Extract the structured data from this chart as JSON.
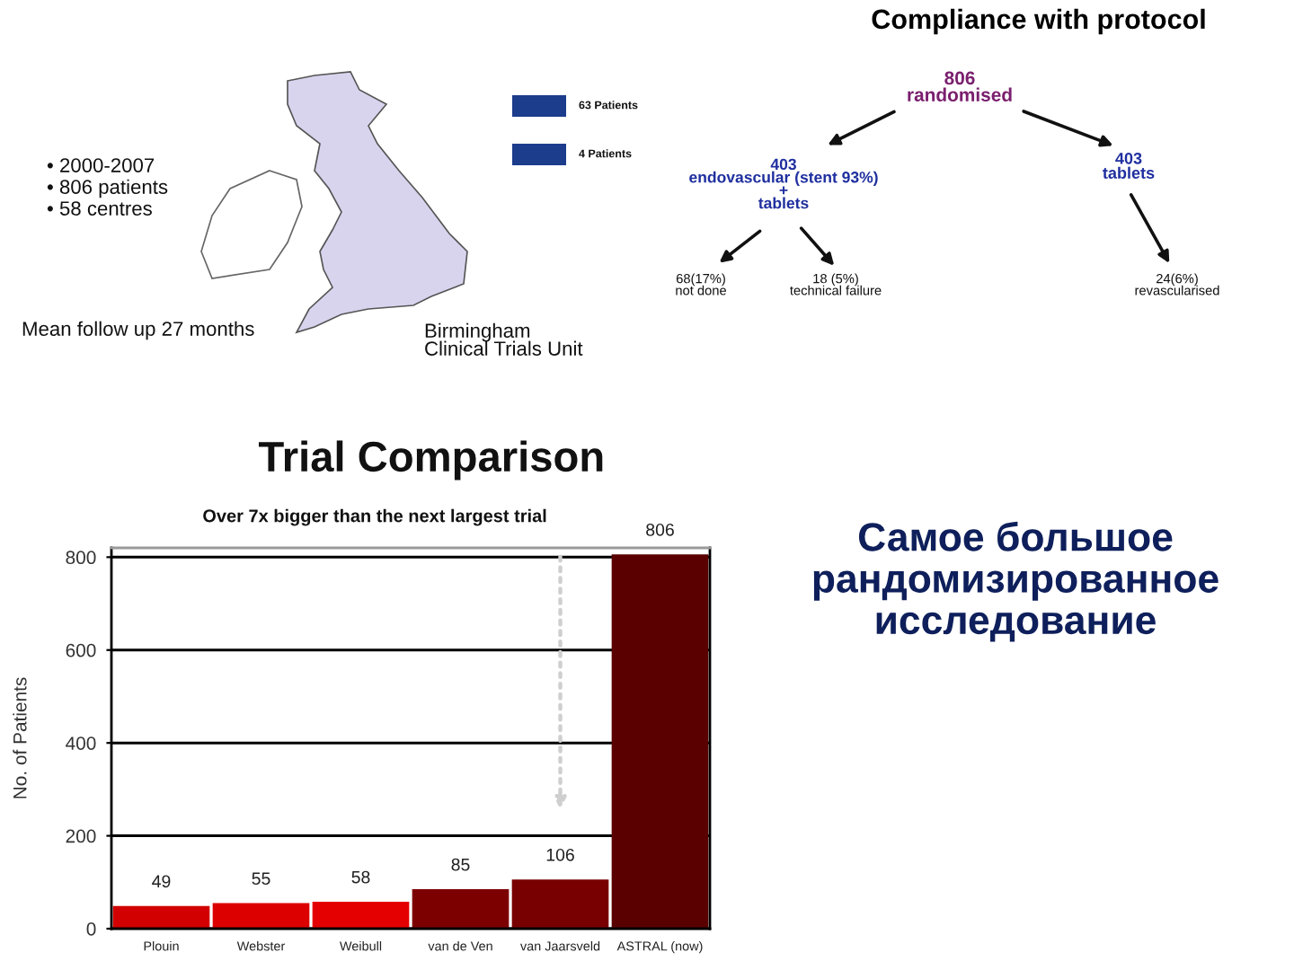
{
  "chart_data": [
    {
      "type": "other",
      "annotations": [
        "• 2000-2007",
        "• 806 patients",
        "• 58 centres",
        "Mean follow up 27 months",
        "Birmingham\nClinical Trials Unit",
        "63 Patients",
        "4 Patients"
      ]
    },
    {
      "type": "other",
      "title": "Compliance with protocol",
      "annotations": [
        "806\nrandomised",
        "403\nendovascular (stent 93%)\n+\ntablets",
        "403\ntablets",
        "68(17%)\nnot done",
        "18 (5%)\ntechnical failure",
        "24(6%)\nrevascularised"
      ]
    },
    {
      "type": "bar",
      "title": "Trial Comparison",
      "subtitle": "Over 7x bigger than the next largest trial",
      "ylabel": "No. of Patients",
      "categories": [
        "Plouin",
        "Webster",
        "Weibull",
        "van de Ven",
        "van Jaarsveld",
        "ASTRAL (now)"
      ],
      "values": [
        49,
        55,
        58,
        85,
        106,
        806
      ],
      "colors": [
        "#d20000",
        "#dc0000",
        "#e40000",
        "#7c0000",
        "#780000",
        "#5a0000"
      ],
      "ylim": [
        0,
        820
      ],
      "yticks": [
        0,
        200,
        400,
        600,
        800
      ],
      "grid": "y",
      "data_labels": true
    },
    {
      "type": "other",
      "title": "Самое большое\nрандомизированное\nисследование"
    }
  ]
}
